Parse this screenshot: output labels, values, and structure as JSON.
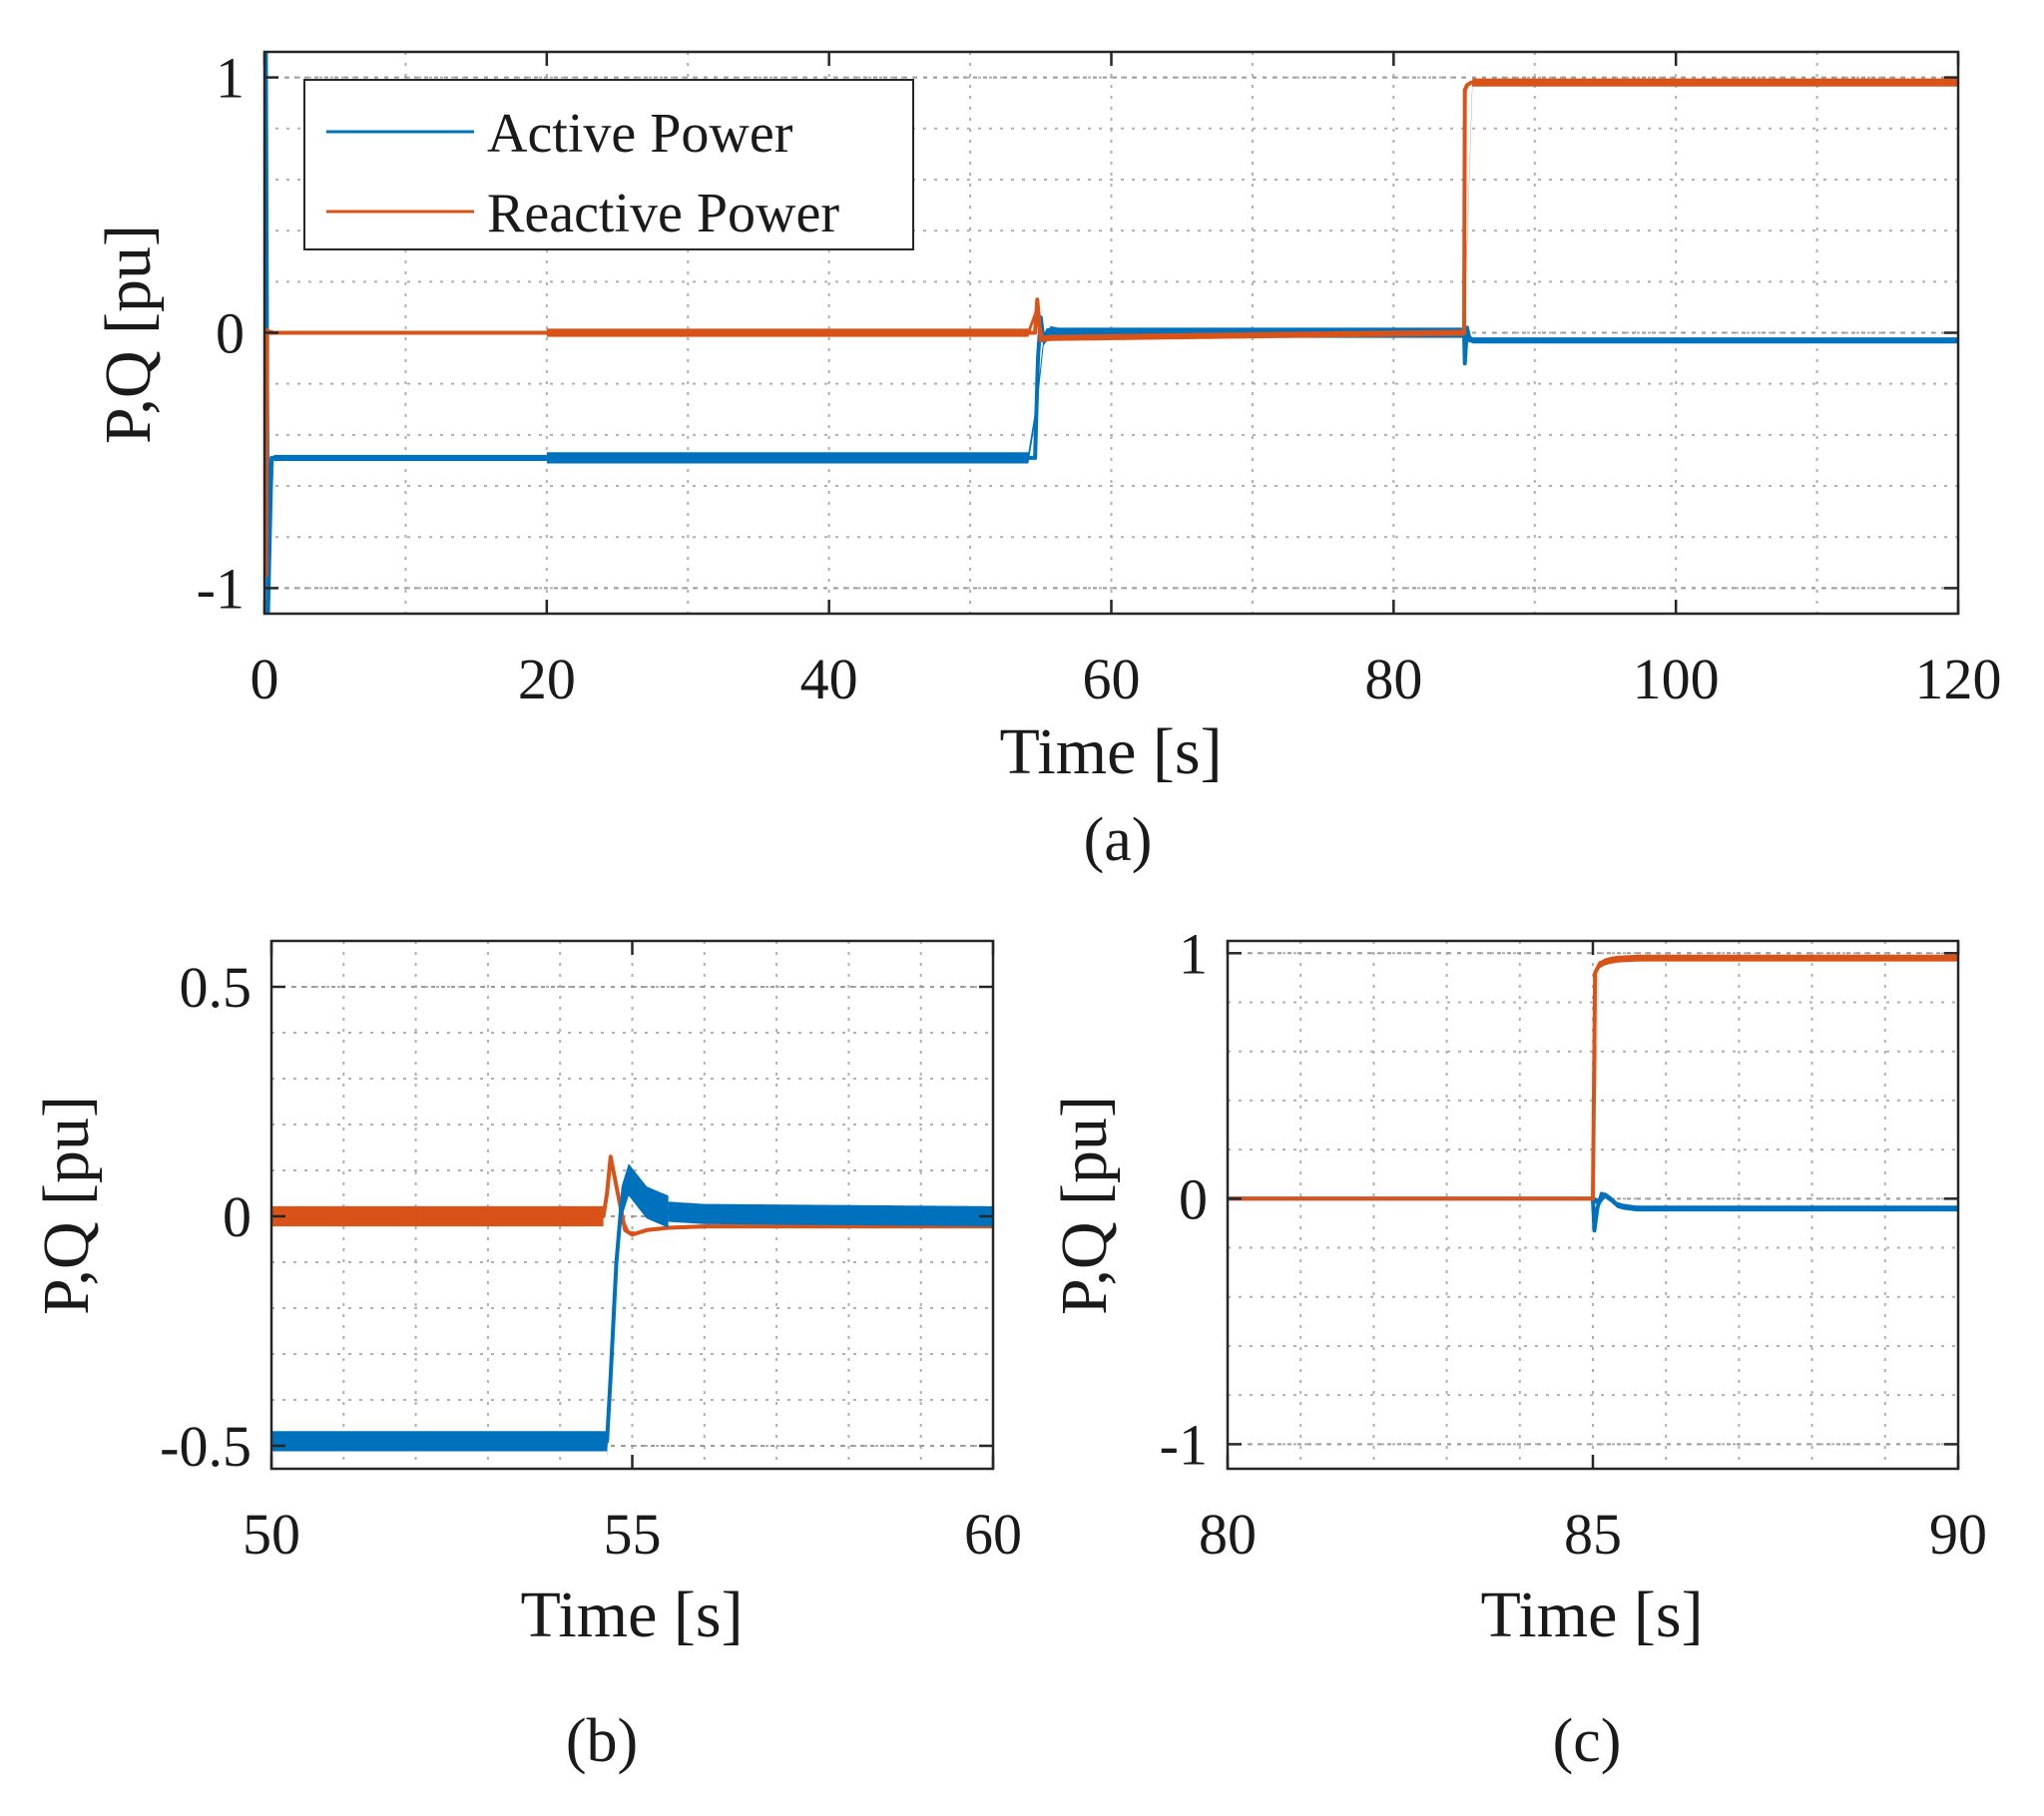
{
  "colors": {
    "active": "#0072BD",
    "reactive": "#D95319",
    "grid": "#b0b0b0",
    "axis": "#262626"
  },
  "chart_data": [
    {
      "id": "a",
      "type": "line",
      "caption": "(a)",
      "xlabel": "Time [s]",
      "ylabel": "P,Q [pu]",
      "xlim": [
        0,
        120
      ],
      "ylim": [
        -1.1,
        1.1
      ],
      "xticks": [
        0,
        20,
        40,
        60,
        80,
        100,
        120
      ],
      "xtick_labels": [
        "0",
        "20",
        "40",
        "60",
        "80",
        "100",
        "120"
      ],
      "yticks": [
        -1,
        0,
        1
      ],
      "ytick_labels": [
        "-1",
        "0",
        "1"
      ],
      "x_minor_step": 10,
      "y_minor_step": 0.2,
      "grid": true,
      "legend": {
        "position": "top-left",
        "entries": [
          "Active Power",
          "Reactive Power"
        ]
      },
      "series": [
        {
          "name": "Active Power",
          "color_key": "active",
          "x": [
            0,
            0.1,
            0.25,
            0.5,
            20,
            20.1,
            54.6,
            54.8,
            55.0,
            55.2,
            55.5,
            56,
            70,
            85,
            85.05,
            85.2,
            85.4,
            86,
            120
          ],
          "y": [
            0,
            1.1,
            -1.1,
            -0.49,
            -0.49,
            -0.49,
            -0.49,
            -0.1,
            0.06,
            -0.03,
            0.01,
            0,
            0,
            0,
            -0.12,
            0.02,
            -0.03,
            -0.03,
            -0.03
          ],
          "band": [
            [
              0,
              20,
              0.012
            ],
            [
              20,
              54.7,
              0.022
            ],
            [
              54.7,
              85,
              0.02
            ],
            [
              85,
              120,
              0.012
            ]
          ]
        },
        {
          "name": "Reactive Power",
          "color_key": "reactive",
          "x": [
            0,
            0.1,
            0.2,
            0.4,
            20,
            54.6,
            54.75,
            55.0,
            55.3,
            56,
            70,
            85,
            85.05,
            85.2,
            85.5,
            86,
            120
          ],
          "y": [
            0,
            -0.95,
            0.01,
            0,
            0,
            0,
            0.13,
            -0.03,
            -0.02,
            -0.02,
            -0.01,
            0,
            0.95,
            0.97,
            0.98,
            0.98,
            0.98
          ],
          "band": [
            [
              0,
              20,
              0.008
            ],
            [
              20,
              54.7,
              0.016
            ],
            [
              54.7,
              85,
              0.012
            ],
            [
              85,
              120,
              0.016
            ]
          ]
        }
      ]
    },
    {
      "id": "b",
      "type": "line",
      "caption": "(b)",
      "xlabel": "Time [s]",
      "ylabel": "P,Q [pu]",
      "xlim": [
        50,
        60
      ],
      "ylim": [
        -0.55,
        0.6
      ],
      "xticks": [
        50,
        55,
        60
      ],
      "xtick_labels": [
        "50",
        "55",
        "60"
      ],
      "yticks": [
        -0.5,
        0,
        0.5
      ],
      "ytick_labels": [
        "-0.5",
        "0",
        "0.5"
      ],
      "x_minor_step": 1,
      "y_minor_step": 0.1,
      "grid": true,
      "legend": null,
      "series": [
        {
          "name": "Reactive Power",
          "color_key": "reactive",
          "x": [
            50,
            54.6,
            54.65,
            54.7,
            54.8,
            54.9,
            55.0,
            55.2,
            55.5,
            56,
            60
          ],
          "y": [
            0,
            0,
            0.05,
            0.13,
            0.05,
            -0.03,
            -0.04,
            -0.03,
            -0.025,
            -0.022,
            -0.022
          ],
          "band": [
            [
              50,
              54.6,
              0.022
            ],
            [
              54.6,
              60,
              0.004
            ]
          ]
        },
        {
          "name": "Active Power",
          "color_key": "active",
          "x": [
            50,
            54.65,
            54.7,
            54.78,
            54.85,
            54.95,
            55.05,
            55.2,
            55.5,
            56,
            60
          ],
          "y": [
            -0.49,
            -0.49,
            -0.35,
            -0.1,
            0.03,
            0.08,
            0.06,
            0.03,
            0.01,
            0.005,
            0
          ],
          "band": [
            [
              50,
              54.65,
              0.022
            ],
            [
              54.65,
              55.5,
              0.035
            ],
            [
              55.5,
              60,
              0.022
            ]
          ]
        }
      ]
    },
    {
      "id": "c",
      "type": "line",
      "caption": "(c)",
      "xlabel": "Time [s]",
      "ylabel": "P,Q [pu]",
      "xlim": [
        80,
        90
      ],
      "ylim": [
        -1.1,
        1.05
      ],
      "xticks": [
        80,
        85,
        90
      ],
      "xtick_labels": [
        "80",
        "85",
        "90"
      ],
      "yticks": [
        -1,
        0,
        1
      ],
      "ytick_labels": [
        "-1",
        "0",
        "1"
      ],
      "x_minor_step": 1,
      "y_minor_step": 0.2,
      "grid": true,
      "legend": null,
      "series": [
        {
          "name": "Active Power",
          "color_key": "active",
          "x": [
            80,
            85,
            85.02,
            85.06,
            85.12,
            85.2,
            85.35,
            85.6,
            86,
            90
          ],
          "y": [
            0,
            0,
            -0.13,
            -0.04,
            0.02,
            0.01,
            -0.03,
            -0.04,
            -0.04,
            -0.04
          ],
          "band": [
            [
              80,
              85,
              0.005
            ],
            [
              85,
              90,
              0.012
            ]
          ]
        },
        {
          "name": "Reactive Power",
          "color_key": "reactive",
          "x": [
            80,
            85,
            85.03,
            85.1,
            85.3,
            85.6,
            86,
            90
          ],
          "y": [
            0,
            0,
            0.92,
            0.96,
            0.975,
            0.98,
            0.98,
            0.98
          ],
          "band": [
            [
              80,
              85,
              0.005
            ],
            [
              85,
              90,
              0.014
            ]
          ]
        }
      ]
    }
  ]
}
